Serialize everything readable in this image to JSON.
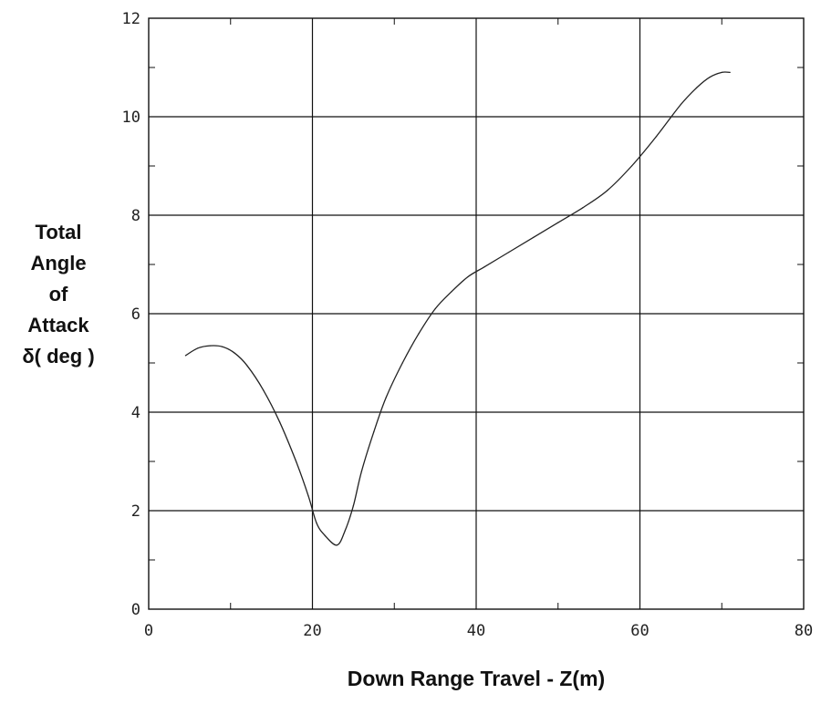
{
  "chart_data": {
    "type": "line",
    "xlabel": "Down Range Travel - Z(m)",
    "ylabel_lines": [
      "Total",
      "Angle",
      "of",
      "Attack",
      "δ( deg )"
    ],
    "xlim": [
      0,
      80
    ],
    "ylim": [
      0,
      12
    ],
    "x_ticks": [
      "0",
      "20",
      "40",
      "60",
      "80"
    ],
    "y_ticks": [
      "0",
      "2",
      "4",
      "6",
      "8",
      "10",
      "12"
    ],
    "grid": true,
    "series": [
      {
        "x": [
          4.5,
          6,
          7.5,
          9,
          10.5,
          12,
          14,
          16,
          18,
          19.5,
          20.5,
          21.5,
          23,
          24,
          25,
          26,
          27.5,
          29,
          31,
          33,
          35,
          37,
          39,
          41,
          44,
          47,
          50,
          53,
          56,
          59,
          62,
          65,
          67,
          68.5,
          70,
          71
        ],
        "y": [
          5.15,
          5.3,
          5.35,
          5.33,
          5.2,
          4.95,
          4.45,
          3.8,
          3.0,
          2.3,
          1.75,
          1.5,
          1.3,
          1.6,
          2.1,
          2.8,
          3.6,
          4.3,
          5.0,
          5.6,
          6.1,
          6.45,
          6.75,
          6.95,
          7.25,
          7.55,
          7.85,
          8.15,
          8.5,
          9.0,
          9.6,
          10.25,
          10.6,
          10.8,
          10.9,
          10.9
        ]
      }
    ]
  }
}
